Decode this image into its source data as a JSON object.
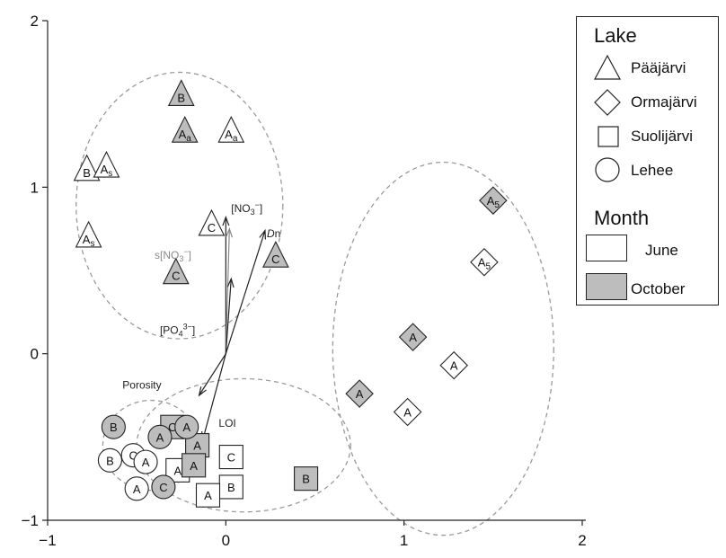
{
  "chart_data": {
    "type": "scatter",
    "xlim": [
      -1,
      2
    ],
    "ylim": [
      -1,
      2
    ],
    "x_ticks": [
      "−1",
      "0",
      "1",
      "2"
    ],
    "y_ticks": [
      "−1",
      "0",
      "1",
      "2"
    ],
    "grid": false,
    "legend_position": "top-right",
    "legend": {
      "lake_title": "Lake",
      "month_title": "Month",
      "lakes": [
        {
          "name": "Pääjärvi",
          "shape": "triangle"
        },
        {
          "name": "Ormajärvi",
          "shape": "diamond"
        },
        {
          "name": "Suolijärvi",
          "shape": "square"
        },
        {
          "name": "Lehee",
          "shape": "circle"
        }
      ],
      "months": [
        {
          "name": "June",
          "fill": "#ffffff"
        },
        {
          "name": "October",
          "fill": "#bdbdbd"
        }
      ]
    },
    "points": [
      {
        "shape": "triangle",
        "month": "October",
        "label": "B",
        "x": -0.25,
        "y": 1.55
      },
      {
        "shape": "triangle",
        "month": "October",
        "label": "A",
        "sub": "a",
        "x": -0.23,
        "y": 1.33
      },
      {
        "shape": "triangle",
        "month": "June",
        "label": "A",
        "sub": "a",
        "x": 0.03,
        "y": 1.33
      },
      {
        "shape": "triangle",
        "month": "June",
        "label": "B",
        "x": -0.78,
        "y": 1.1
      },
      {
        "shape": "triangle",
        "month": "June",
        "label": "A",
        "sub": "s",
        "x": -0.67,
        "y": 1.12
      },
      {
        "shape": "triangle",
        "month": "June",
        "label": "A",
        "sub": "s",
        "x": -0.77,
        "y": 0.7
      },
      {
        "shape": "triangle",
        "month": "June",
        "label": "C",
        "x": -0.08,
        "y": 0.77
      },
      {
        "shape": "triangle",
        "month": "October",
        "label": "C",
        "x": -0.28,
        "y": 0.48
      },
      {
        "shape": "triangle",
        "month": "October",
        "label": "C",
        "x": 0.28,
        "y": 0.58
      },
      {
        "shape": "diamond",
        "month": "October",
        "label": "A",
        "sub": "5",
        "x": 1.5,
        "y": 0.92
      },
      {
        "shape": "diamond",
        "month": "June",
        "label": "A",
        "sub": "5",
        "x": 1.45,
        "y": 0.55
      },
      {
        "shape": "diamond",
        "month": "October",
        "label": "A",
        "x": 1.05,
        "y": 0.1
      },
      {
        "shape": "diamond",
        "month": "June",
        "label": "A",
        "x": 1.28,
        "y": -0.07
      },
      {
        "shape": "diamond",
        "month": "October",
        "label": "A",
        "x": 0.75,
        "y": -0.24
      },
      {
        "shape": "diamond",
        "month": "June",
        "label": "A",
        "x": 1.02,
        "y": -0.35
      },
      {
        "shape": "square",
        "month": "October",
        "label": "C",
        "x": -0.3,
        "y": -0.44
      },
      {
        "shape": "square",
        "month": "October",
        "label": "A",
        "x": -0.16,
        "y": -0.55
      },
      {
        "shape": "square",
        "month": "June",
        "label": "C",
        "x": 0.03,
        "y": -0.62
      },
      {
        "shape": "square",
        "month": "June",
        "label": "A",
        "x": -0.27,
        "y": -0.7
      },
      {
        "shape": "square",
        "month": "October",
        "label": "A",
        "x": -0.18,
        "y": -0.67
      },
      {
        "shape": "square",
        "month": "June",
        "label": "B",
        "x": 0.03,
        "y": -0.8
      },
      {
        "shape": "square",
        "month": "June",
        "label": "A",
        "x": -0.1,
        "y": -0.85
      },
      {
        "shape": "square",
        "month": "October",
        "label": "B",
        "x": 0.45,
        "y": -0.75
      },
      {
        "shape": "circle",
        "month": "October",
        "label": "B",
        "x": -0.63,
        "y": -0.44
      },
      {
        "shape": "circle",
        "month": "October",
        "label": "A",
        "x": -0.37,
        "y": -0.5
      },
      {
        "shape": "circle",
        "month": "October",
        "label": "A",
        "x": -0.22,
        "y": -0.44
      },
      {
        "shape": "circle",
        "month": "June",
        "label": "B",
        "x": -0.65,
        "y": -0.64
      },
      {
        "shape": "circle",
        "month": "June",
        "label": "C",
        "x": -0.52,
        "y": -0.61
      },
      {
        "shape": "circle",
        "month": "June",
        "label": "A",
        "x": -0.45,
        "y": -0.65
      },
      {
        "shape": "circle",
        "month": "June",
        "label": "A",
        "x": -0.5,
        "y": -0.81
      },
      {
        "shape": "circle",
        "month": "October",
        "label": "C",
        "x": -0.35,
        "y": -0.8
      }
    ],
    "ellipses": [
      {
        "cx": -0.26,
        "cy": 0.89,
        "rx": 0.58,
        "ry": 0.8
      },
      {
        "cx": 1.22,
        "cy": 0.03,
        "rx": 0.62,
        "ry": 1.12
      },
      {
        "cx": -0.42,
        "cy": -0.55,
        "rx": 0.27,
        "ry": 0.27
      },
      {
        "cx": 0.1,
        "cy": -0.55,
        "rx": 0.6,
        "ry": 0.4
      }
    ],
    "vectors": [
      {
        "label": "[NO3−]",
        "label_text": "[NO",
        "sub": "3",
        "sup": "−",
        "close": "]",
        "x": 0.0,
        "y": 0.82,
        "lx": 0.03,
        "ly": 0.85,
        "color": "#222222",
        "italic": false
      },
      {
        "label": "s[NO3−]",
        "label_text": "s[NO",
        "sub": "3",
        "sup": "−",
        "close": "]",
        "x": 0.02,
        "y": 0.75,
        "lx": -0.4,
        "ly": 0.57,
        "color": "#888888",
        "italic": false
      },
      {
        "label": "Dn",
        "label_text": "D",
        "sub": "",
        "sup": "",
        "close": "n",
        "x": 0.22,
        "y": 0.74,
        "lx": 0.23,
        "ly": 0.7,
        "color": "#222222",
        "italic": true
      },
      {
        "label": "[PO43−]",
        "label_text": "[PO",
        "sub": "4",
        "sup": "3−",
        "close": "]",
        "x": 0.03,
        "y": 0.45,
        "lx": -0.37,
        "ly": 0.12,
        "color": "#222222",
        "italic": false
      },
      {
        "label": "Porosity",
        "label_text": "Porosity",
        "sub": "",
        "sup": "",
        "close": "",
        "x": -0.15,
        "y": -0.25,
        "lx": -0.58,
        "ly": -0.21,
        "color": "#222222",
        "italic": false
      },
      {
        "label": "LOI",
        "label_text": "LOI",
        "sub": "",
        "sup": "",
        "close": "",
        "x": -0.13,
        "y": -0.52,
        "lx": -0.04,
        "ly": -0.44,
        "color": "#222222",
        "italic": false
      }
    ],
    "vector_origin": {
      "x": 0.0,
      "y": 0.0
    }
  }
}
